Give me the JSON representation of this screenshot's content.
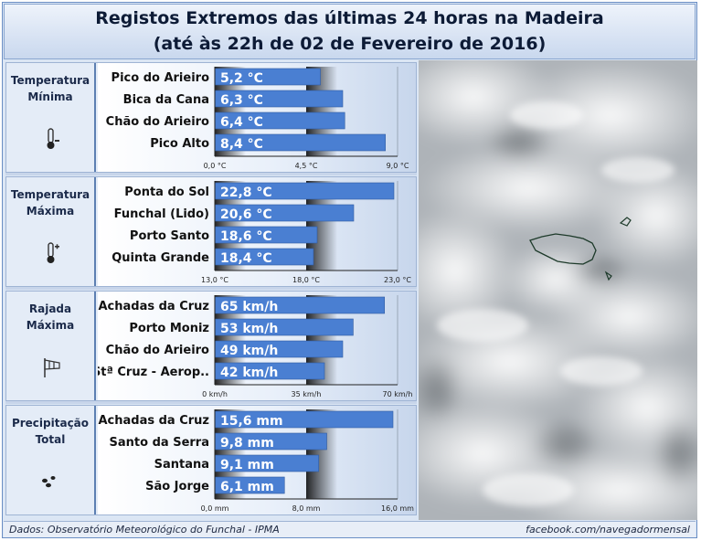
{
  "title_line1": "Registos Extremos das últimas 24 horas na Madeira",
  "title_line2": "(até às 22h de 02 de Fevereiro de 2016)",
  "footer_left": "Dados:  Observatório Meteorológico do Funchal - IPMA",
  "footer_right": "facebook.com/navegadormensal",
  "colors": {
    "bar": "#4a7fd2",
    "axis": "#202020",
    "frame": "#6a8ec4"
  },
  "chart_data": [
    {
      "type": "bar",
      "orientation": "horizontal",
      "category_label": "Temperatura Mínima",
      "icon": "thermometer-minus-icon",
      "categories": [
        "Pico do Arieiro",
        "Bica da Cana",
        "Chão do Arieiro",
        "Pico Alto"
      ],
      "values": [
        5.2,
        6.3,
        6.4,
        8.4
      ],
      "labels": [
        "5,2 °C",
        "6,3 °C",
        "6,4 °C",
        "8,4 °C"
      ],
      "xlim": [
        0,
        9
      ],
      "ticks": [
        "0,0 °C",
        "4,5 °C",
        "9,0 °C"
      ]
    },
    {
      "type": "bar",
      "orientation": "horizontal",
      "category_label": "Temperatura Máxima",
      "icon": "thermometer-plus-icon",
      "categories": [
        "Ponta do Sol",
        "Funchal (Lido)",
        "Porto Santo",
        "Quinta Grande"
      ],
      "values": [
        22.8,
        20.6,
        18.6,
        18.4
      ],
      "labels": [
        "22,8 °C",
        "20,6 °C",
        "18,6 °C",
        "18,4 °C"
      ],
      "xlim": [
        13,
        23
      ],
      "ticks": [
        "13,0 °C",
        "18,0 °C",
        "23,0 °C"
      ]
    },
    {
      "type": "bar",
      "orientation": "horizontal",
      "category_label": "Rajada Máxima",
      "icon": "windsock-icon",
      "categories": [
        "Achadas da Cruz",
        "Porto Moniz",
        "Chão do Arieiro",
        "Stª Cruz - Aerop.."
      ],
      "values": [
        65,
        53,
        49,
        42
      ],
      "labels": [
        "65 km/h",
        "53 km/h",
        "49 km/h",
        "42 km/h"
      ],
      "xlim": [
        0,
        70
      ],
      "ticks": [
        "0 km/h",
        "35 km/h",
        "70 km/h"
      ]
    },
    {
      "type": "bar",
      "orientation": "horizontal",
      "category_label": "Precipitação Total",
      "icon": "raindrops-icon",
      "categories": [
        "Achadas da Cruz",
        "Santo da Serra",
        "Santana",
        "São Jorge"
      ],
      "values": [
        15.6,
        9.8,
        9.1,
        6.1
      ],
      "labels": [
        "15,6 mm",
        "9,8 mm",
        "9,1 mm",
        "6,1 mm"
      ],
      "xlim": [
        0,
        16
      ],
      "ticks": [
        "0,0 mm",
        "8,0 mm",
        "16,0 mm"
      ]
    }
  ]
}
